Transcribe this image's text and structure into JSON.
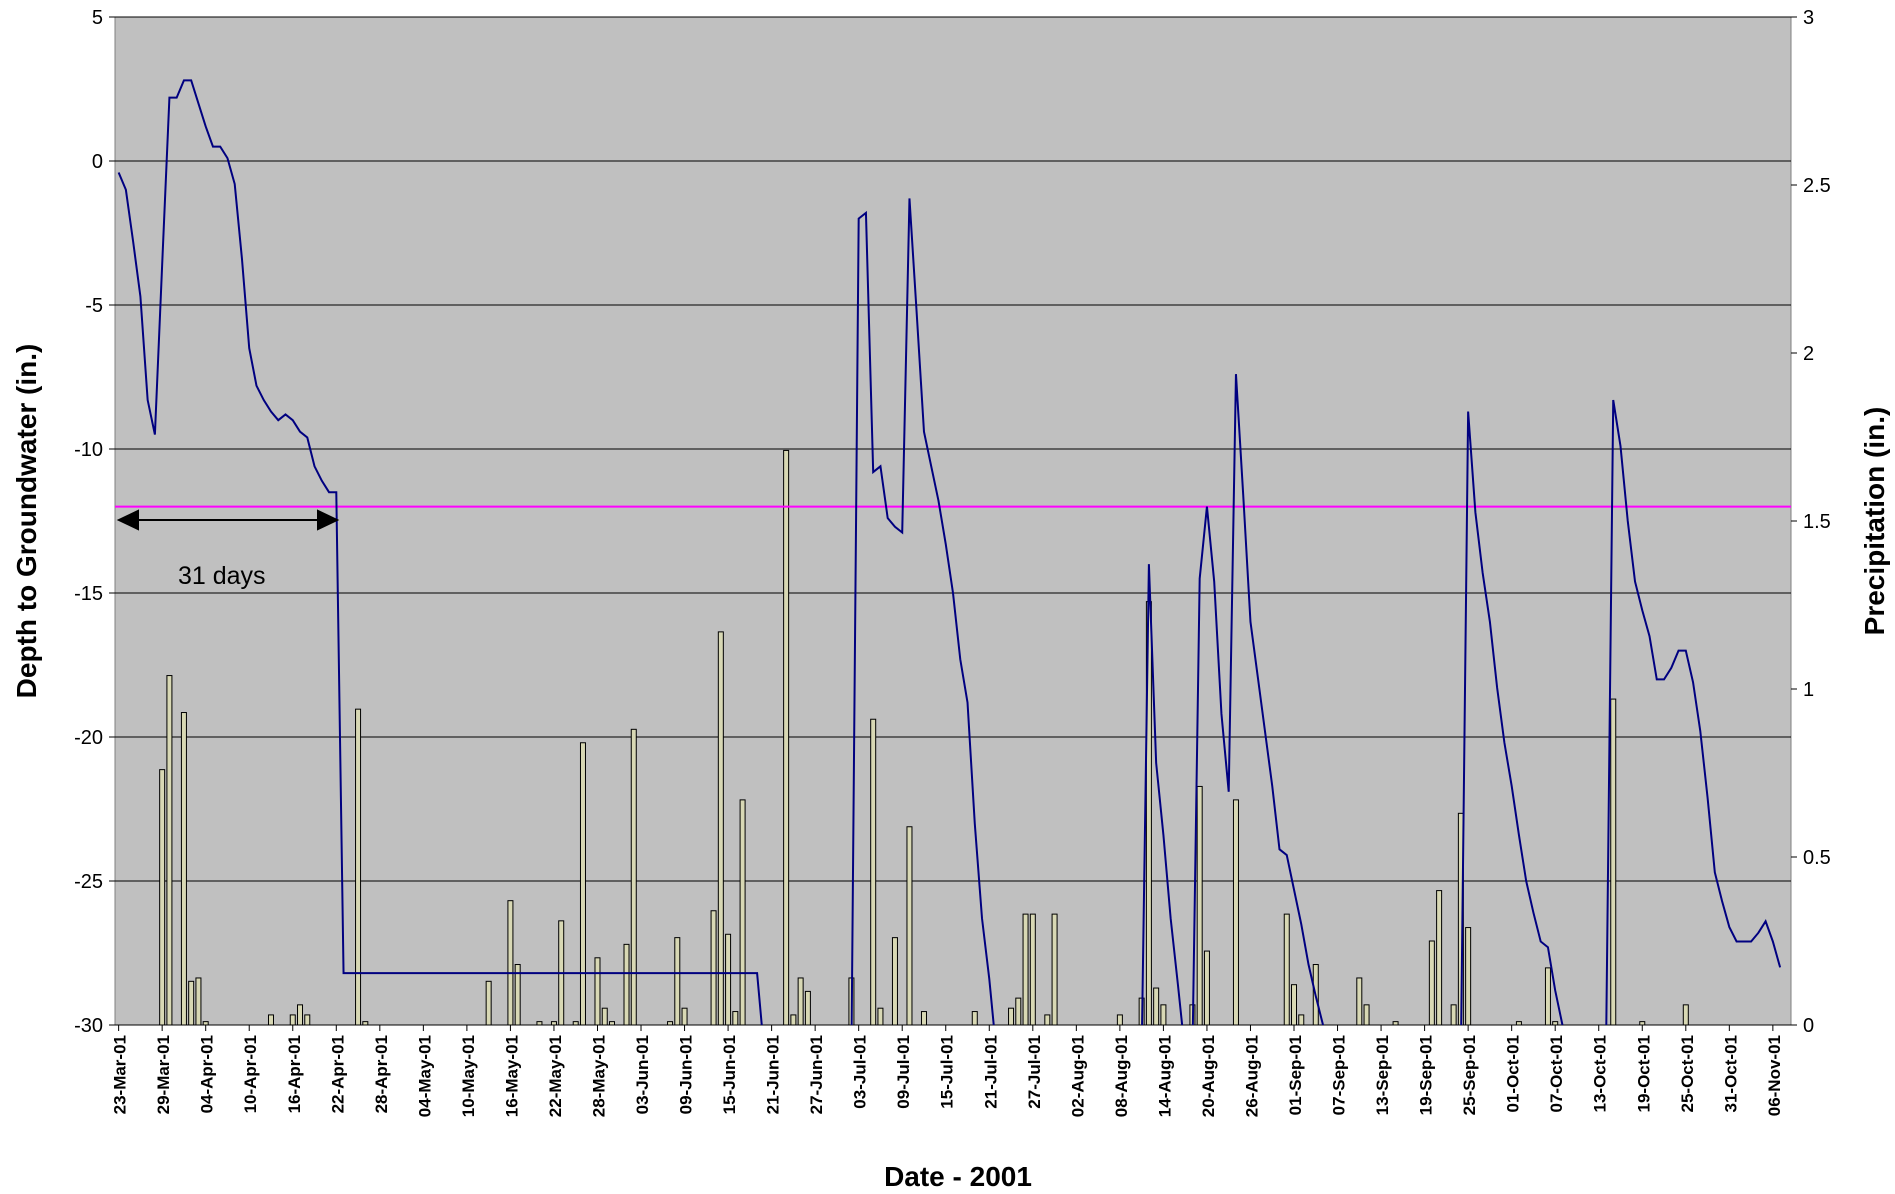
{
  "chart_data": {
    "type": "combo",
    "xlabel": "Date - 2001",
    "ylabel": "Depth to Groundwater (in.)",
    "y2label": "Precipitation (in.)",
    "annotation": "31 days",
    "categories": [
      "23-Mar-01",
      null,
      null,
      null,
      null,
      null,
      "29-Mar-01",
      null,
      null,
      null,
      null,
      null,
      "04-Apr-01",
      null,
      null,
      null,
      null,
      null,
      "10-Apr-01",
      null,
      null,
      null,
      null,
      null,
      "16-Apr-01",
      null,
      null,
      null,
      null,
      null,
      "22-Apr-01",
      null,
      null,
      null,
      null,
      null,
      "28-Apr-01",
      null,
      null,
      null,
      null,
      null,
      "04-May-01",
      null,
      null,
      null,
      null,
      null,
      "10-May-01",
      null,
      null,
      null,
      null,
      null,
      "16-May-01",
      null,
      null,
      null,
      null,
      null,
      "22-May-01",
      null,
      null,
      null,
      null,
      null,
      "28-May-01",
      null,
      null,
      null,
      null,
      null,
      "03-Jun-01",
      null,
      null,
      null,
      null,
      null,
      "09-Jun-01",
      null,
      null,
      null,
      null,
      null,
      "15-Jun-01",
      null,
      null,
      null,
      null,
      null,
      "21-Jun-01",
      null,
      null,
      null,
      null,
      null,
      "27-Jun-01",
      null,
      null,
      null,
      null,
      null,
      "03-Jul-01",
      null,
      null,
      null,
      null,
      null,
      "09-Jul-01",
      null,
      null,
      null,
      null,
      null,
      "15-Jul-01",
      null,
      null,
      null,
      null,
      null,
      "21-Jul-01",
      null,
      null,
      null,
      null,
      null,
      "27-Jul-01",
      null,
      null,
      null,
      null,
      null,
      "02-Aug-01",
      null,
      null,
      null,
      null,
      null,
      "08-Aug-01",
      null,
      null,
      null,
      null,
      null,
      "14-Aug-01",
      null,
      null,
      null,
      null,
      null,
      "20-Aug-01",
      null,
      null,
      null,
      null,
      null,
      "26-Aug-01",
      null,
      null,
      null,
      null,
      null,
      "01-Sep-01",
      null,
      null,
      null,
      null,
      null,
      "07-Sep-01",
      null,
      null,
      null,
      null,
      null,
      "13-Sep-01",
      null,
      null,
      null,
      null,
      null,
      "19-Sep-01",
      null,
      null,
      null,
      null,
      null,
      "25-Sep-01",
      null,
      null,
      null,
      null,
      null,
      "01-Oct-01",
      null,
      null,
      null,
      null,
      null,
      "07-Oct-01",
      null,
      null,
      null,
      null,
      null,
      "13-Oct-01",
      null,
      null,
      null,
      null,
      null,
      "19-Oct-01",
      null,
      null,
      null,
      null,
      null,
      "25-Oct-01",
      null,
      null,
      null,
      null,
      null,
      "31-Oct-01",
      null,
      null,
      null,
      null,
      null,
      "06-Nov-01",
      null,
      null
    ],
    "series": [
      {
        "type": "line",
        "color": "#000080",
        "values": [
          -0.4,
          -1.0,
          -2.8,
          -4.7,
          -8.3,
          -9.5,
          -3.6,
          2.2,
          2.2,
          2.8,
          2.8,
          2.0,
          1.2,
          0.5,
          0.5,
          0.1,
          -0.8,
          -3.4,
          -6.5,
          -7.8,
          -8.3,
          -8.7,
          -9.0,
          -8.8,
          -9.0,
          -9.4,
          -9.6,
          -10.6,
          -11.1,
          -11.5,
          -11.5,
          -28.2,
          -28.2,
          -28.2,
          -28.2,
          -28.2,
          -28.2,
          -28.2,
          -28.2,
          -28.2,
          -28.2,
          -28.2,
          -28.2,
          -28.2,
          -28.2,
          -28.2,
          -28.2,
          -28.2,
          -28.2,
          -28.2,
          -28.2,
          -28.2,
          -28.2,
          -28.2,
          -28.2,
          -28.2,
          -28.2,
          -28.2,
          -28.2,
          -28.2,
          -28.2,
          -28.2,
          -28.2,
          -28.2,
          -28.2,
          -28.2,
          -28.2,
          -28.2,
          -28.2,
          -28.2,
          -28.2,
          -28.2,
          -28.2,
          -28.2,
          -28.2,
          -28.2,
          -28.2,
          -28.2,
          -28.2,
          -28.2,
          -28.2,
          -28.2,
          -28.2,
          -28.2,
          -28.2,
          -28.2,
          -28.2,
          -28.2,
          -28.2,
          -31,
          -31,
          -31,
          -31,
          -31,
          -31,
          -31,
          -31,
          -31,
          -31,
          -31,
          -31,
          -31,
          -2.0,
          -1.8,
          -10.8,
          -10.6,
          -12.4,
          -12.7,
          -12.9,
          -1.3,
          -5.3,
          -9.4,
          -10.6,
          -11.8,
          -13.3,
          -15.0,
          -17.3,
          -18.8,
          -23.0,
          -26.3,
          -28.4,
          -31,
          -31,
          -31,
          -31,
          -31,
          -31,
          -31,
          -31,
          -31,
          -31,
          -31,
          -31,
          -31,
          -31,
          -31,
          -31,
          -31,
          -31,
          -31,
          -31,
          -31,
          -14.0,
          -20.9,
          -23.4,
          -26.3,
          -28.6,
          -31,
          -31,
          -14.5,
          -12.0,
          -14.6,
          -19.2,
          -21.9,
          -7.4,
          -11.6,
          -16.0,
          -17.9,
          -19.8,
          -21.7,
          -23.9,
          -24.1,
          -25.3,
          -26.5,
          -27.9,
          -29.0,
          -30.0,
          -31,
          -31,
          -31,
          -31,
          -31,
          -31,
          -31,
          -31,
          -31,
          -31,
          -31,
          -31,
          -31,
          -31,
          -31,
          -31,
          -31,
          -31,
          -31,
          -8.7,
          -12.2,
          -14.3,
          -16.0,
          -18.3,
          -20.2,
          -21.7,
          -23.4,
          -25.0,
          -26.1,
          -27.1,
          -27.3,
          -28.8,
          -30.0,
          -31,
          -31,
          -31,
          -31,
          -31,
          -31,
          -8.3,
          -9.9,
          -12.5,
          -14.6,
          -15.6,
          -16.5,
          -18.0,
          -18.0,
          -17.6,
          -17.0,
          -17.0,
          -18.1,
          -19.8,
          -22.1,
          -24.7,
          -25.7,
          -26.6,
          -27.1,
          -27.1,
          -27.1,
          -26.8,
          -26.4,
          -27.1,
          -28.0,
          null
        ]
      },
      {
        "type": "bar",
        "axis": "y2",
        "color": "#d8d8b4",
        "values": [
          0,
          0,
          0,
          0,
          0,
          0,
          0.76,
          1.04,
          0,
          0.93,
          0.13,
          0.14,
          0.01,
          0,
          0,
          0,
          0,
          0,
          0,
          0,
          0,
          0.03,
          0,
          0,
          0.03,
          0.06,
          0.03,
          0,
          0,
          0,
          0,
          0,
          0,
          0.94,
          0.01,
          0,
          0,
          0,
          0,
          0,
          0,
          0,
          0,
          0,
          0,
          0,
          0,
          0,
          0,
          0,
          0,
          0.13,
          0,
          0,
          0.37,
          0.18,
          0,
          0,
          0.01,
          0,
          0.01,
          0.31,
          0,
          0.01,
          0.84,
          0,
          0.2,
          0.05,
          0.01,
          0,
          0.24,
          0.88,
          0,
          0,
          0,
          0,
          0.01,
          0.26,
          0.05,
          0,
          0,
          0,
          0.34,
          1.17,
          0.27,
          0.04,
          0.67,
          0,
          0,
          0,
          0,
          0,
          1.71,
          0.03,
          0.14,
          0.1,
          0,
          0,
          0,
          0,
          0,
          0.14,
          0,
          0,
          0.91,
          0.05,
          0,
          0.26,
          0,
          0.59,
          0,
          0.04,
          0,
          0,
          0,
          0,
          0,
          0,
          0.04,
          0,
          0,
          0,
          0,
          0.05,
          0.08,
          0.33,
          0.33,
          0,
          0.03,
          0.33,
          0,
          0,
          0,
          0,
          0,
          0,
          0,
          0,
          0.03,
          0,
          0,
          0.08,
          1.26,
          0.11,
          0.06,
          0,
          0,
          0,
          0.06,
          0.71,
          0.22,
          0,
          0,
          0,
          0.67,
          0,
          0,
          0,
          0,
          0,
          0,
          0.33,
          0.12,
          0.03,
          0,
          0.18,
          0,
          0,
          0,
          0,
          0,
          0.14,
          0.06,
          0,
          0,
          0,
          0.01,
          0,
          0,
          0,
          0,
          0.25,
          0.4,
          0,
          0.06,
          0.63,
          0.29,
          0,
          0,
          0,
          0,
          0,
          0,
          0.01,
          0,
          0,
          0,
          0.17,
          0.01,
          0,
          0,
          0,
          0,
          0,
          0,
          0,
          0.97,
          0,
          0,
          0,
          0.01,
          0,
          0,
          0,
          0,
          0,
          0.06,
          0,
          0,
          0,
          0,
          0,
          0,
          0,
          0,
          0,
          0,
          0,
          0,
          0,
          0
        ]
      }
    ],
    "hlines": [
      {
        "value": -12,
        "color": "#ff00ff"
      }
    ],
    "ylim": [
      -30,
      5
    ],
    "yticks": [
      -30,
      -25,
      -20,
      -15,
      -10,
      -5,
      0,
      5
    ],
    "y2lim": [
      0,
      3
    ],
    "y2ticks": [
      0,
      0.5,
      1,
      1.5,
      2,
      2.5,
      3
    ],
    "grid": true,
    "background": "#c0c0c0"
  }
}
